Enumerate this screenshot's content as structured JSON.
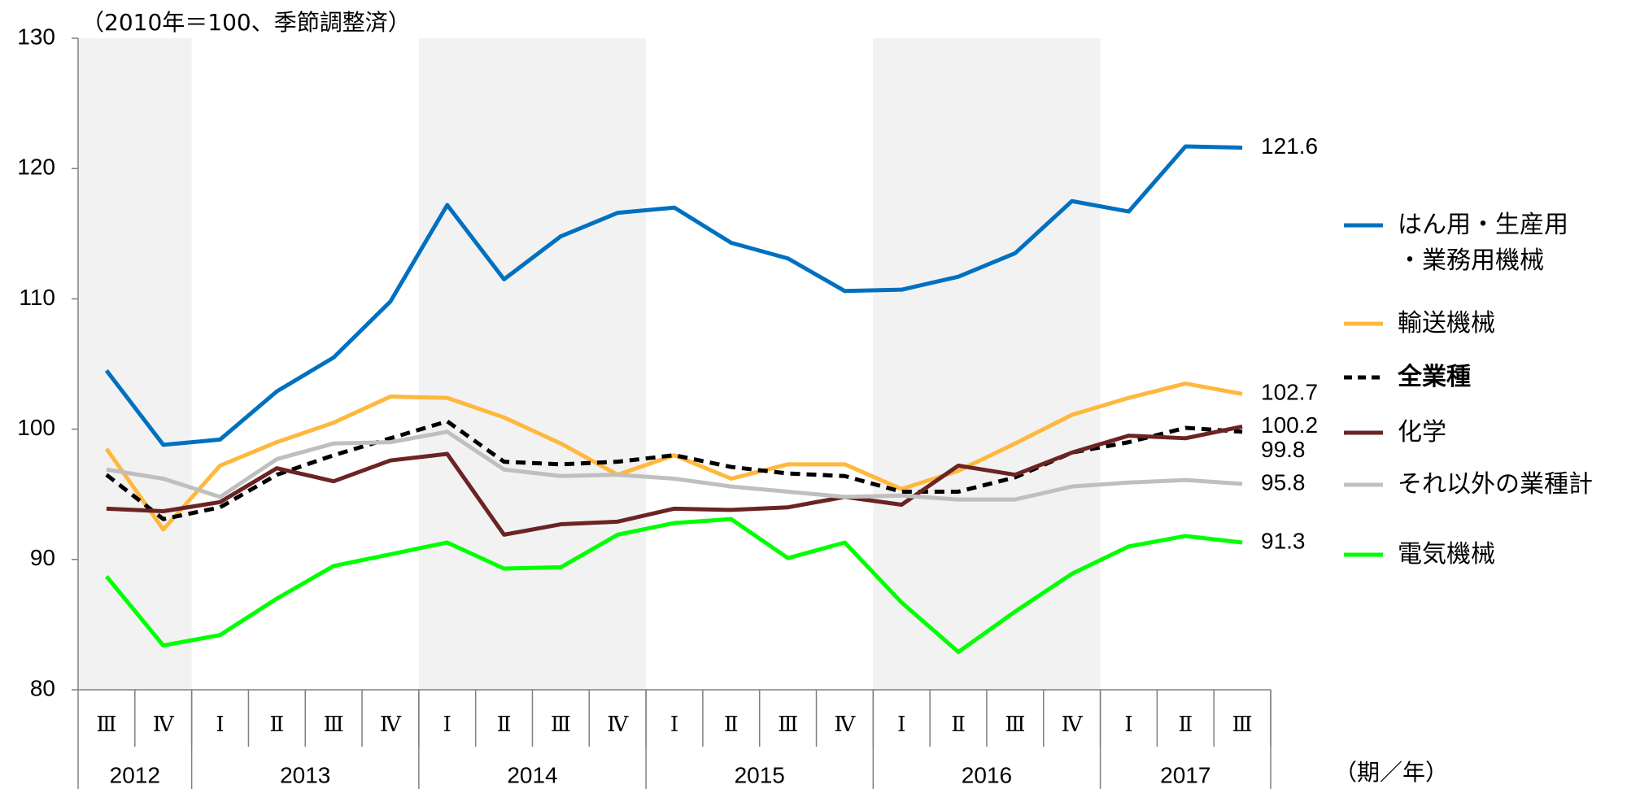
{
  "chart_data": {
    "type": "line",
    "subtitle": "（2010年＝100、季節調整済）",
    "x_unit": "（期／年）",
    "categories": [
      "Ⅲ",
      "Ⅳ",
      "Ⅰ",
      "Ⅱ",
      "Ⅲ",
      "Ⅳ",
      "Ⅰ",
      "Ⅱ",
      "Ⅲ",
      "Ⅳ",
      "Ⅰ",
      "Ⅱ",
      "Ⅲ",
      "Ⅳ",
      "Ⅰ",
      "Ⅱ",
      "Ⅲ",
      "Ⅳ",
      "Ⅰ",
      "Ⅱ",
      "Ⅲ"
    ],
    "years": [
      "2012",
      null,
      "2013",
      null,
      null,
      null,
      "2014",
      null,
      null,
      null,
      "2015",
      null,
      null,
      null,
      "2016",
      null,
      null,
      null,
      "2017",
      null,
      null
    ],
    "ylim": [
      80,
      130
    ],
    "yticks": [
      80,
      90,
      100,
      110,
      120,
      130
    ],
    "series": [
      {
        "name": "はん用・生産用・業務用機械",
        "color": "#0070c0",
        "style": "solid",
        "values": [
          104.5,
          98.8,
          99.2,
          102.9,
          105.5,
          109.8,
          117.2,
          111.5,
          114.8,
          116.6,
          117.0,
          114.3,
          113.1,
          110.6,
          110.7,
          111.7,
          113.5,
          117.5,
          116.7,
          121.7,
          121.6
        ]
      },
      {
        "name": "輸送機械",
        "color": "#ffb83d",
        "style": "solid",
        "values": [
          98.5,
          92.3,
          97.2,
          99.0,
          100.5,
          102.5,
          102.4,
          100.9,
          98.9,
          96.5,
          98.0,
          96.2,
          97.3,
          97.3,
          95.4,
          96.8,
          98.9,
          101.1,
          102.4,
          103.5,
          102.7
        ]
      },
      {
        "name": "全業種",
        "color": "#000000",
        "style": "dashed",
        "bold": true,
        "values": [
          96.5,
          93.1,
          94.0,
          96.5,
          98.0,
          99.3,
          100.6,
          97.5,
          97.3,
          97.5,
          98.0,
          97.1,
          96.6,
          96.4,
          95.2,
          95.2,
          96.3,
          98.2,
          99.0,
          100.1,
          99.8
        ]
      },
      {
        "name": "化学",
        "color": "#6b2323",
        "style": "solid",
        "values": [
          93.9,
          93.7,
          94.4,
          97.0,
          96.0,
          97.6,
          98.1,
          91.9,
          92.7,
          92.9,
          93.9,
          93.8,
          94.0,
          94.8,
          94.2,
          97.2,
          96.5,
          98.2,
          99.5,
          99.3,
          100.2
        ]
      },
      {
        "name": "それ以外の業種計",
        "color": "#bfbfbf",
        "style": "solid",
        "values": [
          96.9,
          96.2,
          94.8,
          97.7,
          98.9,
          99.0,
          99.8,
          96.9,
          96.4,
          96.5,
          96.2,
          95.6,
          95.2,
          94.8,
          94.9,
          94.6,
          94.6,
          95.6,
          95.9,
          96.1,
          95.8
        ]
      },
      {
        "name": "電気機械",
        "color": "#00ff00",
        "style": "solid",
        "values": [
          88.7,
          83.4,
          84.2,
          87.0,
          89.5,
          90.4,
          91.3,
          89.3,
          89.4,
          91.9,
          92.8,
          93.1,
          90.1,
          91.3,
          86.7,
          82.9,
          86.0,
          88.9,
          91.0,
          91.8,
          91.3
        ]
      }
    ]
  }
}
